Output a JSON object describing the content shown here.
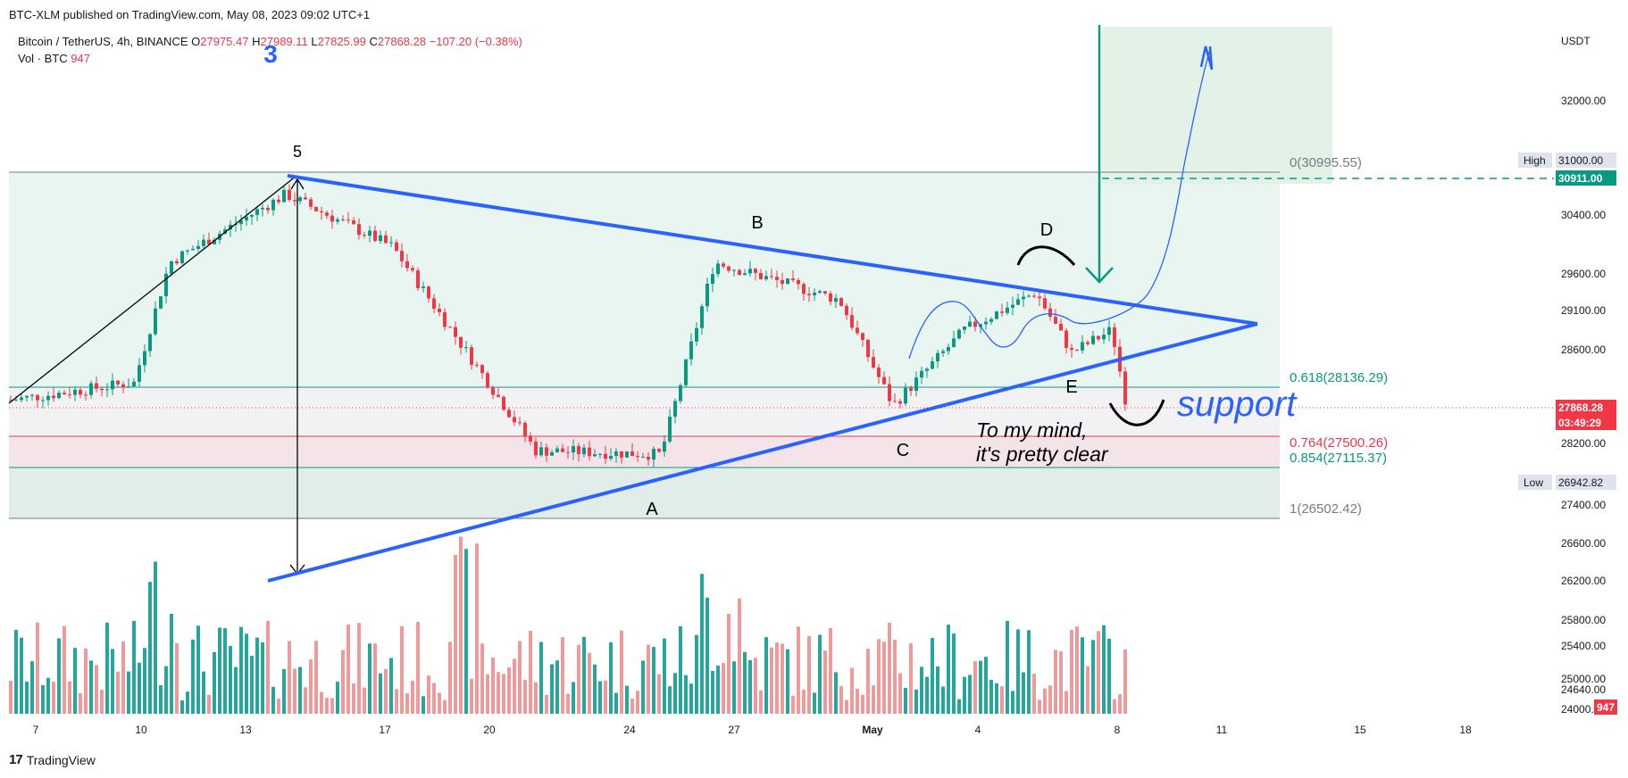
{
  "header": {
    "published": "BTC-XLM published on TradingView.com, May 08, 2023 09:02 UTC+1",
    "symbol": "Bitcoin / TetherUS, 4h, BINANCE",
    "o_label": "O",
    "o_value": "27975.47",
    "h_label": "H",
    "h_value": "27989.11",
    "l_label": "L",
    "l_value": "27825.99",
    "c_label": "C",
    "c_value": "27868.28",
    "change": "−107.20 (−0.38%)",
    "vol_label": "Vol · BTC",
    "vol_value": "947"
  },
  "footer": {
    "brand": "TradingView"
  },
  "chart_data": {
    "type": "candlestick",
    "currency": "USDT",
    "y_ticks": [
      "32000.00",
      "31000.00",
      "30400.00",
      "29600.00",
      "29100.00",
      "28600.00",
      "28200.00",
      "27400.00",
      "26600.00",
      "26200.00",
      "25800.00",
      "25400.00",
      "25000.00",
      "24640.00",
      "24000.00"
    ],
    "x_ticks": [
      "7",
      "10",
      "13",
      "17",
      "20",
      "24",
      "27",
      "May",
      "4",
      "8",
      "11",
      "15",
      "18"
    ],
    "price_tags": [
      {
        "label": "High",
        "value": "31000.00",
        "color": "#e0e3eb"
      },
      {
        "label": "",
        "value": "30911.00",
        "color": "#089981"
      },
      {
        "label": "",
        "value": "27868.28",
        "color": "#f23645"
      },
      {
        "label": "",
        "value": "03:49:29",
        "color": "#f23645"
      },
      {
        "label": "Low",
        "value": "26942.82",
        "color": "#e0e3eb"
      },
      {
        "label": "",
        "value": "947",
        "color": "#f23645"
      }
    ],
    "fib_levels": [
      {
        "level": "0",
        "price": "30995.55",
        "text": "0(30995.55)"
      },
      {
        "level": "0.618",
        "price": "28136.29",
        "text": "0.618(28136.29)"
      },
      {
        "level": "0.764",
        "price": "27500.26",
        "text": "0.764(27500.26)"
      },
      {
        "level": "0.854",
        "price": "27115.37",
        "text": "0.854(27115.37)"
      },
      {
        "level": "1",
        "price": "26502.42",
        "text": "1(26502.42)"
      }
    ],
    "wave_labels": [
      "3",
      "5",
      "A",
      "B",
      "C",
      "D",
      "E"
    ],
    "annotations": [
      "support",
      "To my mind,",
      "it's pretty clear"
    ],
    "last_price": 27868.28,
    "projected_high": 30911.0
  }
}
